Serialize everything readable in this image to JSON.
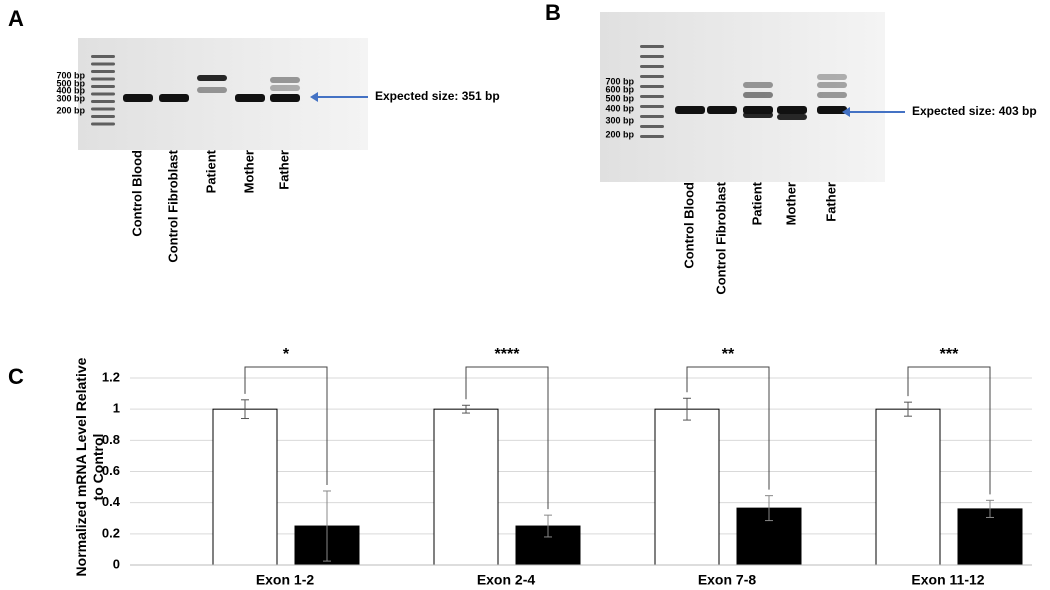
{
  "gels": [
    {
      "label": "A",
      "markers": [
        "700 bp",
        "500 bp",
        "400 bp",
        "300 bp",
        "200 bp"
      ],
      "lanes": [
        "Control Blood",
        "Control Fibroblast",
        "Patient",
        "Mother",
        "Father"
      ],
      "annotation": "Expected size: 351 bp"
    },
    {
      "label": "B",
      "markers": [
        "700 bp",
        "600 bp",
        "500 bp",
        "400 bp",
        "300 bp",
        "200 bp"
      ],
      "lanes": [
        "Control Blood",
        "Control Fibroblast",
        "Patient",
        "Mother",
        "Father"
      ],
      "annotation": "Expected size: 403 bp"
    }
  ],
  "chart_data": {
    "type": "bar",
    "panel_label": "C",
    "y_label": "Normalized mRNA Level Relative to Control",
    "categories": [
      "Exon 1-2",
      "Exon 2-4",
      "Exon 7-8",
      "Exon 11-12"
    ],
    "series": [
      {
        "color": "#ffffff",
        "values": [
          1,
          1,
          1,
          1
        ],
        "errors": [
          0.06,
          0.025,
          0.07,
          0.045
        ]
      },
      {
        "color": "#000000",
        "values": [
          0.25,
          0.25,
          0.365,
          0.36
        ],
        "errors": [
          0.225,
          0.07,
          0.08,
          0.055
        ]
      }
    ],
    "significance": [
      "*",
      "****",
      "**",
      "***"
    ],
    "ylim": [
      0,
      1.2
    ],
    "yticks": [
      0,
      0.2,
      0.4,
      0.6,
      0.8,
      1,
      1.2
    ],
    "grid": true
  }
}
